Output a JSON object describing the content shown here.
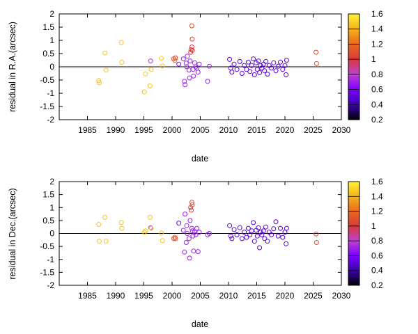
{
  "chart_data": [
    {
      "type": "scatter",
      "xlabel": "date",
      "ylabel": "residual in R.A.(arcsec)",
      "xlim": [
        1980,
        2030
      ],
      "ylim": [
        -2,
        2
      ],
      "xticks": [
        1985,
        1990,
        1995,
        2000,
        2005,
        2010,
        2015,
        2020,
        2025,
        2030
      ],
      "yticks": [
        -2,
        -1.5,
        -1,
        -0.5,
        0,
        0.5,
        1,
        1.5,
        2
      ],
      "zero_line": true,
      "marker": "open-circle",
      "color_encodes": "third variable shown by colorbar (unlabeled)",
      "colorbar": {
        "range": [
          0.2,
          1.6
        ],
        "ticks": [
          0.2,
          0.4,
          0.6,
          0.8,
          1,
          1.2,
          1.4,
          1.6
        ],
        "palette": [
          "#000000",
          "#3b00b0",
          "#7a00ff",
          "#c040d0",
          "#d83a3a",
          "#e86a1c",
          "#f5b21a",
          "#fff23a"
        ]
      },
      "points": [
        [
          1987.0,
          -0.52,
          1.45
        ],
        [
          1987.1,
          -0.6,
          1.45
        ],
        [
          1988.1,
          0.52,
          1.45
        ],
        [
          1988.3,
          -0.13,
          1.45
        ],
        [
          1991.0,
          0.92,
          1.45
        ],
        [
          1991.1,
          0.17,
          1.45
        ],
        [
          1995.1,
          -0.95,
          1.45
        ],
        [
          1995.3,
          -0.27,
          1.45
        ],
        [
          1996.1,
          -0.72,
          1.45
        ],
        [
          1996.2,
          0.22,
          0.75
        ],
        [
          1996.3,
          -0.1,
          1.45
        ],
        [
          1998.1,
          0.32,
          1.45
        ],
        [
          1998.3,
          0.03,
          1.45
        ],
        [
          2000.3,
          0.3,
          1.1
        ],
        [
          2000.5,
          0.24,
          1.15
        ],
        [
          2000.6,
          0.34,
          1.05
        ],
        [
          2001.2,
          0.1,
          0.6
        ],
        [
          2002.0,
          0.3,
          0.7
        ],
        [
          2002.2,
          -0.55,
          0.7
        ],
        [
          2002.3,
          -0.68,
          0.7
        ],
        [
          2002.5,
          0.14,
          0.7
        ],
        [
          2002.6,
          0.0,
          0.7
        ],
        [
          2002.7,
          0.4,
          0.7
        ],
        [
          2003.0,
          -0.12,
          0.7
        ],
        [
          2003.1,
          -0.42,
          0.7
        ],
        [
          2003.2,
          0.22,
          0.7
        ],
        [
          2003.3,
          0.55,
          1.0
        ],
        [
          2003.4,
          0.65,
          1.0
        ],
        [
          2003.5,
          0.75,
          1.0
        ],
        [
          2003.55,
          1.05,
          1.05
        ],
        [
          2003.5,
          1.55,
          1.1
        ],
        [
          2003.6,
          0.62,
          1.0
        ],
        [
          2003.7,
          -0.1,
          0.7
        ],
        [
          2003.8,
          -0.35,
          0.7
        ],
        [
          2004.0,
          0.15,
          0.7
        ],
        [
          2004.2,
          0.0,
          0.7
        ],
        [
          2004.4,
          -0.05,
          0.7
        ],
        [
          2004.6,
          -0.2,
          0.7
        ],
        [
          2004.8,
          0.1,
          0.7
        ],
        [
          2006.3,
          -0.55,
          0.7
        ],
        [
          2006.6,
          0.02,
          0.7
        ],
        [
          2010.2,
          0.28,
          0.5
        ],
        [
          2010.4,
          -0.05,
          0.5
        ],
        [
          2010.6,
          -0.2,
          0.5
        ],
        [
          2011.0,
          0.1,
          0.5
        ],
        [
          2011.5,
          -0.1,
          0.5
        ],
        [
          2012.0,
          0.2,
          0.5
        ],
        [
          2012.4,
          -0.25,
          0.5
        ],
        [
          2012.8,
          0.05,
          0.5
        ],
        [
          2013.2,
          -0.1,
          0.5
        ],
        [
          2013.5,
          0.18,
          0.5
        ],
        [
          2013.8,
          -0.18,
          0.5
        ],
        [
          2014.1,
          0.05,
          0.5
        ],
        [
          2014.4,
          0.3,
          0.5
        ],
        [
          2014.6,
          -0.3,
          0.5
        ],
        [
          2014.9,
          0.15,
          0.5
        ],
        [
          2015.1,
          -0.1,
          0.5
        ],
        [
          2015.3,
          0.22,
          0.5
        ],
        [
          2015.5,
          -0.22,
          0.5
        ],
        [
          2015.7,
          0.05,
          0.5
        ],
        [
          2015.9,
          -0.05,
          0.5
        ],
        [
          2016.2,
          0.1,
          0.5
        ],
        [
          2016.4,
          -0.15,
          0.5
        ],
        [
          2016.6,
          0.2,
          0.5
        ],
        [
          2016.9,
          -0.28,
          0.5
        ],
        [
          2017.2,
          0.05,
          0.5
        ],
        [
          2017.6,
          -0.05,
          0.5
        ],
        [
          2018.0,
          0.15,
          0.5
        ],
        [
          2018.4,
          -0.15,
          0.5
        ],
        [
          2018.8,
          0.02,
          0.5
        ],
        [
          2019.2,
          0.18,
          0.5
        ],
        [
          2019.6,
          -0.1,
          0.5
        ],
        [
          2020.0,
          0.05,
          0.5
        ],
        [
          2020.2,
          -0.3,
          0.5
        ],
        [
          2020.3,
          0.25,
          0.5
        ],
        [
          2025.5,
          0.55,
          1.05
        ],
        [
          2025.6,
          0.12,
          1.1
        ]
      ]
    },
    {
      "type": "scatter",
      "xlabel": "date",
      "ylabel": "residual in Dec.(arcsec)",
      "xlim": [
        1980,
        2030
      ],
      "ylim": [
        -2,
        2
      ],
      "xticks": [
        1985,
        1990,
        1995,
        2000,
        2005,
        2010,
        2015,
        2020,
        2025,
        2030
      ],
      "yticks": [
        -2,
        -1.5,
        -1,
        -0.5,
        0,
        0.5,
        1,
        1.5,
        2
      ],
      "zero_line": true,
      "marker": "open-circle",
      "color_encodes": "third variable shown by colorbar (unlabeled)",
      "colorbar": {
        "range": [
          0.2,
          1.6
        ],
        "ticks": [
          0.2,
          0.4,
          0.6,
          0.8,
          1,
          1.2,
          1.4,
          1.6
        ],
        "palette": [
          "#000000",
          "#3b00b0",
          "#7a00ff",
          "#c040d0",
          "#d83a3a",
          "#e86a1c",
          "#f5b21a",
          "#fff23a"
        ]
      },
      "points": [
        [
          1987.0,
          0.35,
          1.45
        ],
        [
          1987.1,
          -0.3,
          1.45
        ],
        [
          1988.1,
          0.62,
          1.45
        ],
        [
          1988.3,
          -0.3,
          1.45
        ],
        [
          1991.0,
          0.42,
          1.45
        ],
        [
          1991.1,
          0.2,
          1.45
        ],
        [
          1995.1,
          0.05,
          1.45
        ],
        [
          1995.3,
          0.1,
          1.45
        ],
        [
          1996.1,
          0.62,
          1.45
        ],
        [
          1996.2,
          0.22,
          0.75
        ],
        [
          1996.3,
          0.2,
          1.45
        ],
        [
          1998.1,
          0.02,
          1.45
        ],
        [
          1998.3,
          -0.28,
          1.45
        ],
        [
          2000.3,
          -0.2,
          1.1
        ],
        [
          2000.5,
          -0.15,
          1.15
        ],
        [
          2000.6,
          -0.2,
          1.05
        ],
        [
          2001.2,
          0.4,
          0.6
        ],
        [
          2002.0,
          0.12,
          0.7
        ],
        [
          2002.2,
          -0.72,
          0.7
        ],
        [
          2002.3,
          0.75,
          0.7
        ],
        [
          2002.5,
          -0.35,
          0.7
        ],
        [
          2002.6,
          0.3,
          0.7
        ],
        [
          2002.7,
          0.0,
          0.7
        ],
        [
          2003.0,
          -0.2,
          0.7
        ],
        [
          2003.1,
          -0.95,
          0.7
        ],
        [
          2003.2,
          0.5,
          0.7
        ],
        [
          2003.3,
          1.0,
          1.0
        ],
        [
          2003.4,
          0.9,
          1.0
        ],
        [
          2003.5,
          1.2,
          1.05
        ],
        [
          2003.55,
          1.1,
          1.05
        ],
        [
          2003.5,
          0.2,
          0.7
        ],
        [
          2003.6,
          0.1,
          0.7
        ],
        [
          2003.7,
          -0.1,
          0.7
        ],
        [
          2003.8,
          -0.68,
          0.7
        ],
        [
          2004.0,
          0.05,
          0.7
        ],
        [
          2004.2,
          -0.05,
          0.7
        ],
        [
          2004.4,
          0.2,
          0.7
        ],
        [
          2004.6,
          -0.7,
          0.7
        ],
        [
          2004.8,
          0.05,
          0.7
        ],
        [
          2006.3,
          -0.05,
          0.7
        ],
        [
          2006.6,
          0.0,
          0.7
        ],
        [
          2010.2,
          0.3,
          0.5
        ],
        [
          2010.4,
          -0.1,
          0.5
        ],
        [
          2010.6,
          -0.2,
          0.5
        ],
        [
          2011.0,
          0.15,
          0.5
        ],
        [
          2011.5,
          -0.05,
          0.5
        ],
        [
          2012.0,
          0.22,
          0.5
        ],
        [
          2012.4,
          -0.2,
          0.5
        ],
        [
          2012.8,
          0.05,
          0.5
        ],
        [
          2013.2,
          -0.15,
          0.5
        ],
        [
          2013.5,
          0.2,
          0.5
        ],
        [
          2013.8,
          -0.05,
          0.5
        ],
        [
          2014.1,
          0.1,
          0.5
        ],
        [
          2014.4,
          0.42,
          0.5
        ],
        [
          2014.6,
          -0.3,
          0.5
        ],
        [
          2014.9,
          0.12,
          0.5
        ],
        [
          2015.1,
          -0.1,
          0.5
        ],
        [
          2015.3,
          0.22,
          0.5
        ],
        [
          2015.5,
          -0.55,
          0.5
        ],
        [
          2015.7,
          0.05,
          0.5
        ],
        [
          2015.9,
          -0.05,
          0.5
        ],
        [
          2016.2,
          0.1,
          0.5
        ],
        [
          2016.4,
          -0.2,
          0.5
        ],
        [
          2016.6,
          0.25,
          0.5
        ],
        [
          2016.9,
          -0.3,
          0.5
        ],
        [
          2017.2,
          0.05,
          0.5
        ],
        [
          2017.6,
          -0.05,
          0.5
        ],
        [
          2018.0,
          0.18,
          0.5
        ],
        [
          2018.4,
          0.45,
          0.5
        ],
        [
          2018.8,
          -0.1,
          0.5
        ],
        [
          2019.2,
          0.2,
          0.5
        ],
        [
          2019.6,
          -0.15,
          0.5
        ],
        [
          2020.0,
          0.05,
          0.5
        ],
        [
          2020.2,
          -0.4,
          0.5
        ],
        [
          2020.3,
          0.2,
          0.5
        ],
        [
          2025.5,
          -0.02,
          1.05
        ],
        [
          2025.6,
          -0.35,
          1.1
        ]
      ]
    }
  ]
}
